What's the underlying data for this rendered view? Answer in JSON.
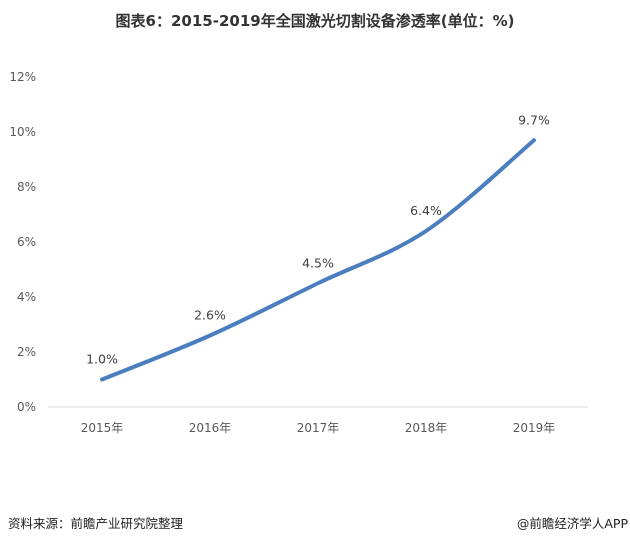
{
  "chart_data": {
    "type": "line",
    "title": "图表6：2015-2019年全国激光切割设备渗透率(单位：%)",
    "categories": [
      "2015年",
      "2016年",
      "2017年",
      "2018年",
      "2019年"
    ],
    "series": [
      {
        "values": [
          1.0,
          2.6,
          4.5,
          6.4,
          9.7
        ],
        "labels": [
          "1.0%",
          "2.6%",
          "4.5%",
          "6.4%",
          "9.7%"
        ],
        "color": "#4a7ebf"
      }
    ],
    "ylim": [
      0,
      12
    ],
    "yticks": [
      "0%",
      "2%",
      "4%",
      "6%",
      "8%",
      "10%",
      "12%"
    ],
    "grid": false,
    "smooth": true
  },
  "footer": {
    "source": "资料来源：前瞻产业研究院整理",
    "credit": "@前瞻经济学人APP"
  }
}
